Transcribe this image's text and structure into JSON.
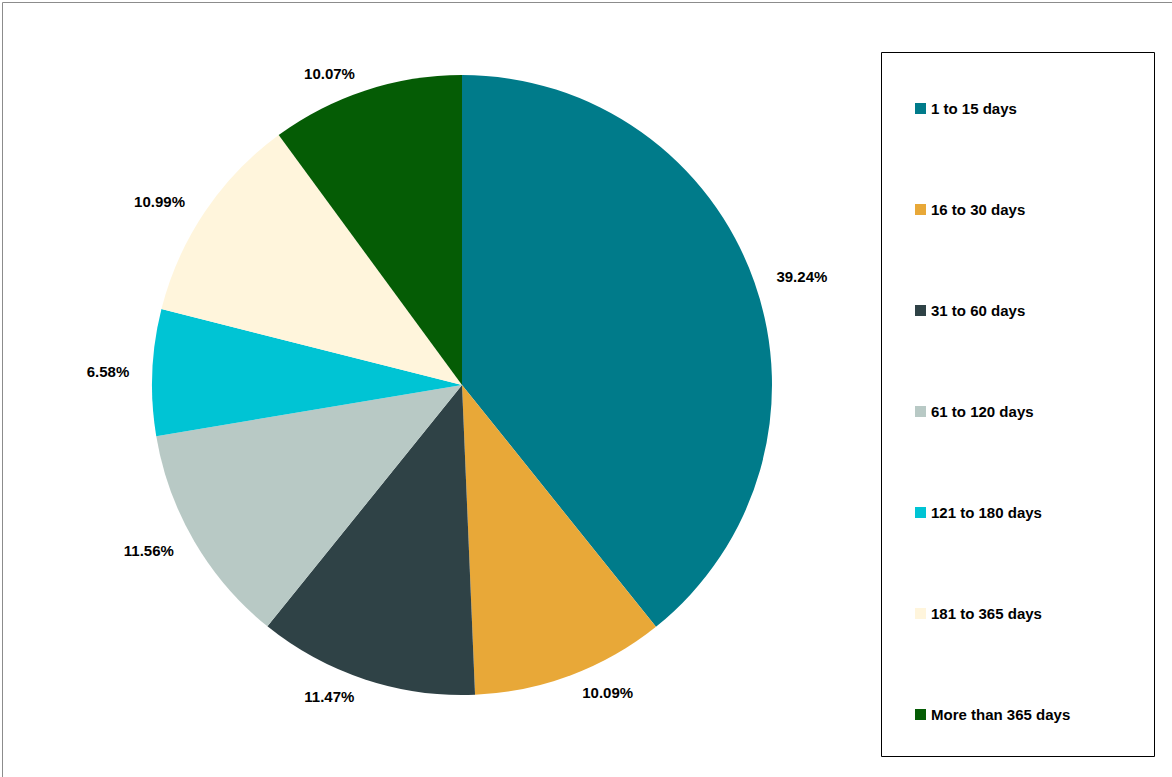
{
  "chart_data": {
    "type": "pie",
    "categories": [
      "1 to 15 days",
      "16 to 30 days",
      "31 to 60 days",
      "61 to 120 days",
      "121 to 180 days",
      "181 to 365 days",
      "More than 365 days"
    ],
    "values": [
      39.24,
      10.09,
      11.47,
      11.56,
      6.58,
      10.99,
      10.07
    ],
    "value_labels": [
      "39.24%",
      "10.09%",
      "11.47%",
      "11.56%",
      "6.58%",
      "10.99%",
      "10.07%"
    ],
    "colors": [
      "#007b8a",
      "#e8a838",
      "#2f4246",
      "#b8c9c5",
      "#00c4d4",
      "#fff5dc",
      "#055c05"
    ],
    "data_labels": true,
    "legend": "right"
  }
}
